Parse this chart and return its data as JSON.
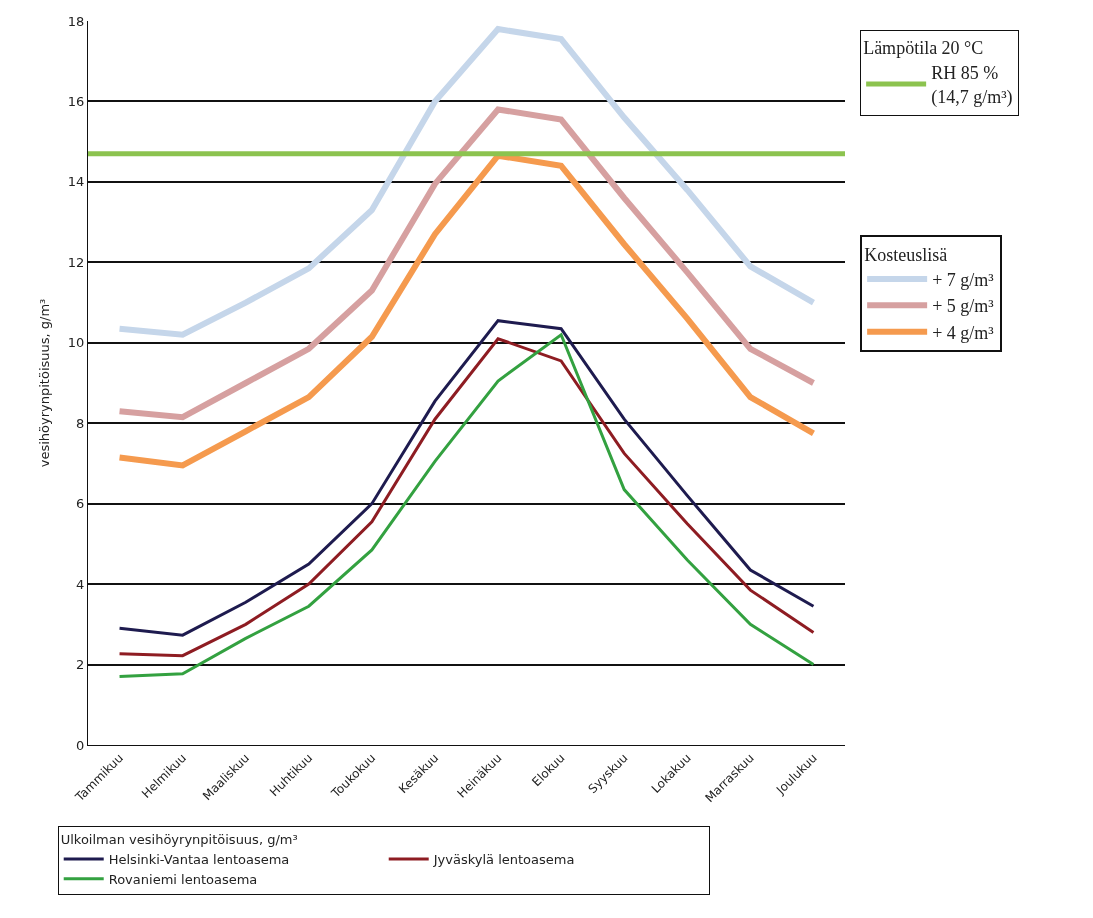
{
  "chart_data": {
    "type": "line",
    "ylabel": "vesihöyrynpitöisuus, g/m³",
    "legend_title": "Ulkoilman vesihöyrynpitöisuus, g/m³",
    "annotations": [
      "Lämpötila 20 °C",
      "Kosteuslisä"
    ],
    "categories": [
      "Tammikuu",
      "Helmikuu",
      "Maaliskuu",
      "Huhtikuu",
      "Toukokuu",
      "Kesäkuu",
      "Heinäkuu",
      "Elokuu",
      "Syyskuu",
      "Lokakuu",
      "Marraskuu",
      "Joulukuu"
    ],
    "series": [
      {
        "name": "+ 7 g/m³",
        "color": "#c5d6ea",
        "values": [
          10.35,
          10.2,
          11.0,
          11.85,
          13.3,
          16.0,
          17.8,
          17.55,
          15.6,
          13.8,
          11.9,
          11.0
        ]
      },
      {
        "name": "+ 5 g/m³",
        "color": "#d6a0a0",
        "values": [
          8.3,
          8.15,
          9.0,
          9.85,
          11.3,
          13.95,
          15.8,
          15.55,
          13.6,
          11.75,
          9.85,
          9.0
        ]
      },
      {
        "name": "+ 4 g/m³",
        "color": "#f59a4e",
        "values": [
          7.15,
          6.95,
          7.8,
          8.65,
          10.15,
          12.7,
          14.65,
          14.4,
          12.45,
          10.6,
          8.65,
          7.75
        ]
      },
      {
        "name": "Helsinki-Vantaa lentoasema",
        "color": "#1e1b4f",
        "values": [
          2.9,
          2.73,
          3.55,
          4.5,
          6.0,
          8.55,
          10.55,
          10.35,
          8.1,
          6.2,
          4.35,
          3.45
        ]
      },
      {
        "name": "Jyväskylä lentoasema",
        "color": "#8e1c22",
        "values": [
          2.27,
          2.22,
          3.0,
          4.0,
          5.55,
          8.1,
          10.1,
          9.55,
          7.25,
          5.5,
          3.85,
          2.8
        ]
      },
      {
        "name": "Rovaniemi lentoasema",
        "color": "#33a140",
        "values": [
          1.7,
          1.77,
          2.65,
          3.45,
          4.85,
          7.05,
          9.05,
          10.2,
          6.35,
          4.6,
          3.0,
          2.0
        ]
      }
    ],
    "ref_lines": [
      {
        "axis": "y",
        "value": 14.7,
        "label": "RH 85 %\n(14,7 g/m³)",
        "color": "#8cc34f"
      }
    ],
    "ylim": [
      0,
      18
    ],
    "yticks": [
      0,
      2,
      4,
      6,
      8,
      10,
      12,
      14,
      16,
      18
    ],
    "grid": "y",
    "legend": "right",
    "marker": "none",
    "line_style": "solid"
  }
}
